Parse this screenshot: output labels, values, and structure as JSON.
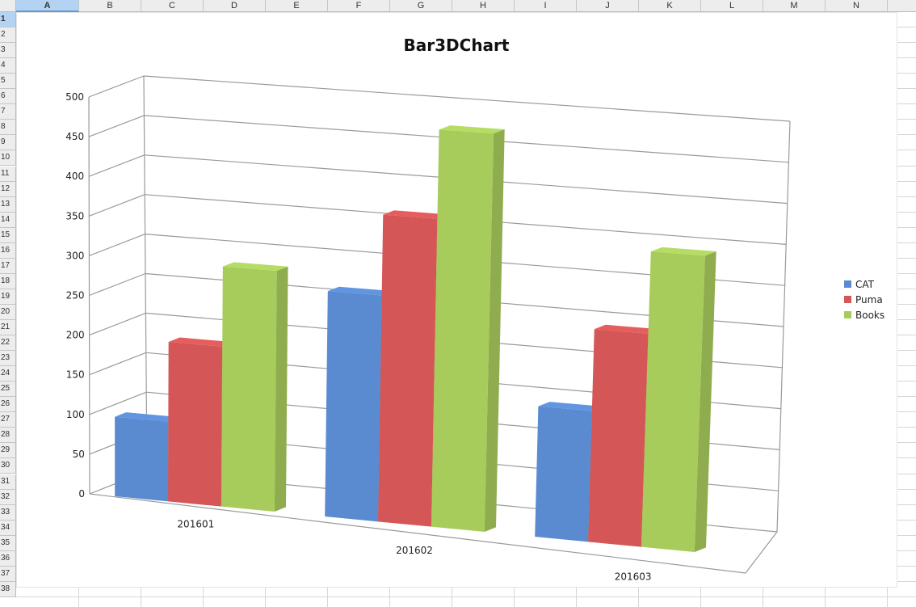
{
  "sheet": {
    "columns": [
      "A",
      "B",
      "C",
      "D",
      "E",
      "F",
      "G",
      "H",
      "I",
      "J",
      "K",
      "L",
      "M",
      "N"
    ],
    "rows": [
      "1",
      "2",
      "3",
      "4",
      "5",
      "6",
      "7",
      "8",
      "9",
      "10",
      "11",
      "12",
      "13",
      "14",
      "15",
      "16",
      "17",
      "18",
      "19",
      "20",
      "21",
      "22",
      "23",
      "24",
      "25",
      "26",
      "27",
      "28",
      "29",
      "30",
      "31",
      "32",
      "33",
      "34",
      "35",
      "36",
      "37",
      "38"
    ],
    "active_column": "A",
    "active_row": "1"
  },
  "chart_data": {
    "type": "bar",
    "title": "Bar3DChart",
    "categories": [
      "201601",
      "201602",
      "201603"
    ],
    "series": [
      {
        "name": "CAT",
        "color": "#5a8ad0",
        "values": [
          100,
          280,
          160
        ]
      },
      {
        "name": "Puma",
        "color": "#d45656",
        "values": [
          200,
          380,
          260
        ]
      },
      {
        "name": "Books",
        "color": "#a8cc5c",
        "values": [
          300,
          490,
          360
        ]
      }
    ],
    "ylim": [
      0,
      500
    ],
    "yticks": [
      "0",
      "50",
      "100",
      "150",
      "200",
      "250",
      "300",
      "350",
      "400",
      "450",
      "500"
    ],
    "grid": true,
    "legend_position": "right",
    "xlabel": "",
    "ylabel": ""
  }
}
